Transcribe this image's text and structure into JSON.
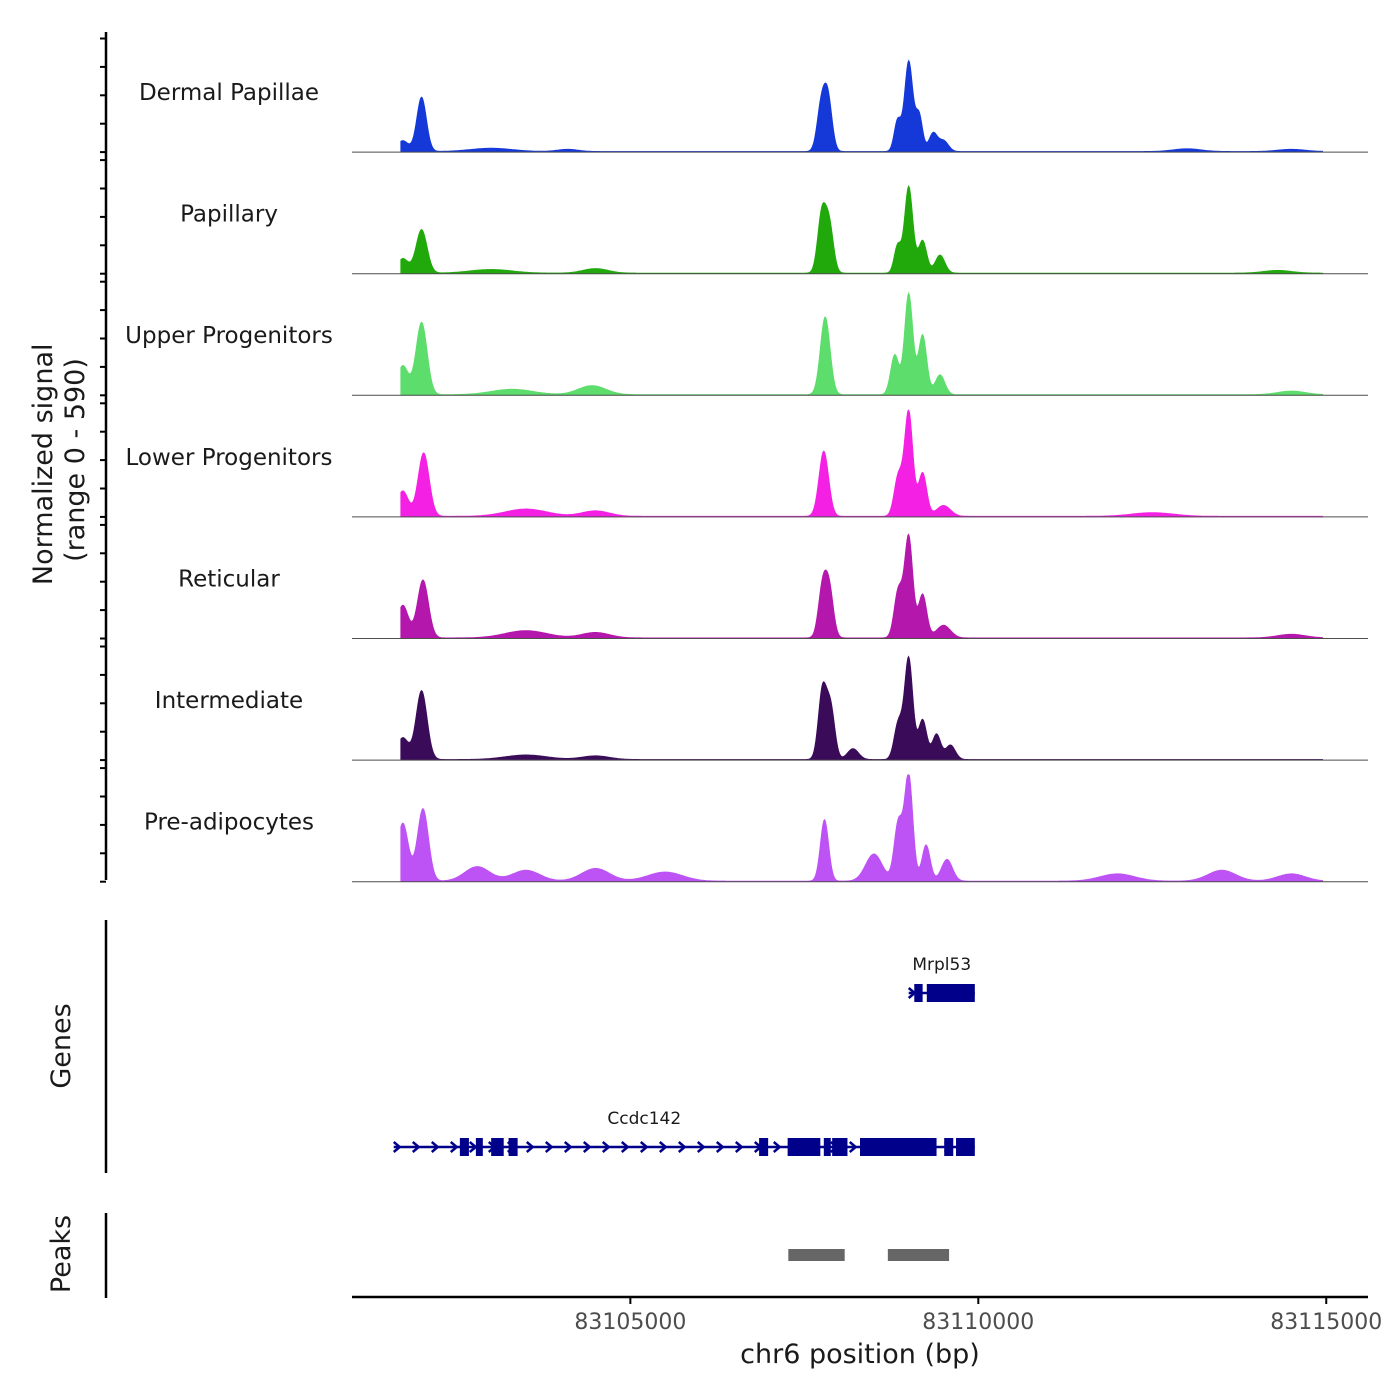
{
  "chart_data": {
    "type": "area",
    "title": "",
    "ylabel_line1": "Normalized signal",
    "ylabel_line2": "(range 0 - 590)",
    "xlabel": "chr6 position (bp)",
    "xlim": [
      83101000,
      83115600
    ],
    "ylim": [
      0,
      590
    ],
    "x_ticks": [
      {
        "value": 83105000,
        "label": "83105000"
      },
      {
        "value": 83110000,
        "label": "83110000"
      },
      {
        "value": 83115000,
        "label": "83115000"
      }
    ],
    "series": [
      {
        "name": "Dermal Papillae",
        "color": "#1539d9",
        "peaks": [
          [
            83101730,
            60,
            80
          ],
          [
            83102000,
            300,
            70
          ],
          [
            83103000,
            18,
            300
          ],
          [
            83104100,
            12,
            150
          ],
          [
            83107740,
            240,
            60
          ],
          [
            83107840,
            290,
            60
          ],
          [
            83108840,
            170,
            50
          ],
          [
            83109000,
            500,
            60
          ],
          [
            83109150,
            200,
            50
          ],
          [
            83109350,
            100,
            60
          ],
          [
            83109500,
            60,
            70
          ],
          [
            83113000,
            15,
            200
          ],
          [
            83114500,
            12,
            200
          ]
        ]
      },
      {
        "name": "Papillary",
        "color": "#21a90c",
        "peaks": [
          [
            83101730,
            80,
            80
          ],
          [
            83102000,
            240,
            80
          ],
          [
            83103000,
            20,
            300
          ],
          [
            83104500,
            25,
            180
          ],
          [
            83107750,
            320,
            60
          ],
          [
            83107860,
            260,
            60
          ],
          [
            83108840,
            150,
            50
          ],
          [
            83109000,
            480,
            60
          ],
          [
            83109200,
            180,
            60
          ],
          [
            83109450,
            100,
            70
          ],
          [
            83114300,
            15,
            200
          ]
        ]
      },
      {
        "name": "Upper Progenitors",
        "color": "#5ddd6b",
        "peaks": [
          [
            83101730,
            160,
            80
          ],
          [
            83102000,
            400,
            80
          ],
          [
            83103300,
            30,
            300
          ],
          [
            83104450,
            50,
            200
          ],
          [
            83107800,
            430,
            70
          ],
          [
            83108800,
            220,
            60
          ],
          [
            83109000,
            560,
            60
          ],
          [
            83109200,
            330,
            60
          ],
          [
            83109450,
            110,
            70
          ],
          [
            83114500,
            20,
            200
          ]
        ]
      },
      {
        "name": "Lower Progenitors",
        "color": "#f420e3",
        "peaks": [
          [
            83101730,
            140,
            80
          ],
          [
            83102030,
            350,
            80
          ],
          [
            83103500,
            40,
            300
          ],
          [
            83104500,
            30,
            200
          ],
          [
            83107780,
            360,
            70
          ],
          [
            83108850,
            220,
            60
          ],
          [
            83109000,
            580,
            60
          ],
          [
            83109200,
            240,
            60
          ],
          [
            83109500,
            60,
            100
          ],
          [
            83112500,
            20,
            300
          ]
        ]
      },
      {
        "name": "Reticular",
        "color": "#b417ac",
        "peaks": [
          [
            83101730,
            180,
            80
          ],
          [
            83102020,
            320,
            80
          ],
          [
            83103500,
            40,
            300
          ],
          [
            83104500,
            30,
            200
          ],
          [
            83107760,
            270,
            60
          ],
          [
            83107860,
            260,
            60
          ],
          [
            83108850,
            260,
            60
          ],
          [
            83109000,
            560,
            60
          ],
          [
            83109200,
            240,
            60
          ],
          [
            83109500,
            70,
            100
          ],
          [
            83114500,
            20,
            200
          ]
        ]
      },
      {
        "name": "Intermediate",
        "color": "#3a0b59",
        "peaks": [
          [
            83101730,
            120,
            80
          ],
          [
            83102000,
            380,
            80
          ],
          [
            83103500,
            25,
            300
          ],
          [
            83104500,
            20,
            200
          ],
          [
            83107760,
            380,
            60
          ],
          [
            83107880,
            280,
            60
          ],
          [
            83108200,
            60,
            80
          ],
          [
            83108850,
            200,
            60
          ],
          [
            83109000,
            560,
            60
          ],
          [
            83109200,
            220,
            60
          ],
          [
            83109400,
            140,
            60
          ],
          [
            83109600,
            80,
            70
          ]
        ]
      },
      {
        "name": "Pre-adipocytes",
        "color": "#bd52f5",
        "peaks": [
          [
            83101730,
            320,
            80
          ],
          [
            83102020,
            400,
            80
          ],
          [
            83102800,
            80,
            180
          ],
          [
            83103500,
            60,
            200
          ],
          [
            83104500,
            70,
            200
          ],
          [
            83105500,
            50,
            250
          ],
          [
            83107790,
            340,
            60
          ],
          [
            83108500,
            150,
            120
          ],
          [
            83108850,
            320,
            60
          ],
          [
            83109000,
            590,
            60
          ],
          [
            83109250,
            200,
            60
          ],
          [
            83109550,
            120,
            80
          ],
          [
            83112000,
            40,
            250
          ],
          [
            83113500,
            60,
            200
          ],
          [
            83114500,
            40,
            200
          ]
        ]
      }
    ],
    "genes": [
      {
        "name": "Mrpl53",
        "strand": "+",
        "start": 83109000,
        "end": 83109950,
        "exons": [
          [
            83109080,
            83109200
          ],
          [
            83109260,
            83109950
          ]
        ]
      },
      {
        "name": "Ccdc142",
        "strand": "+",
        "start": 83101600,
        "end": 83109950,
        "exons": [
          [
            83102550,
            83102680
          ],
          [
            83102780,
            83102880
          ],
          [
            83103000,
            83103180
          ],
          [
            83103250,
            83103380
          ],
          [
            83106850,
            83106980
          ],
          [
            83107260,
            83107730
          ],
          [
            83107780,
            83107880
          ],
          [
            83107900,
            83108120
          ],
          [
            83108300,
            83109400
          ],
          [
            83109510,
            83109640
          ],
          [
            83109680,
            83109950
          ]
        ]
      }
    ],
    "peaks_track": [
      [
        83107270,
        83108080
      ],
      [
        83108700,
        83109580
      ]
    ],
    "track_labels": {
      "genes": "Genes",
      "peaks": "Peaks"
    }
  }
}
